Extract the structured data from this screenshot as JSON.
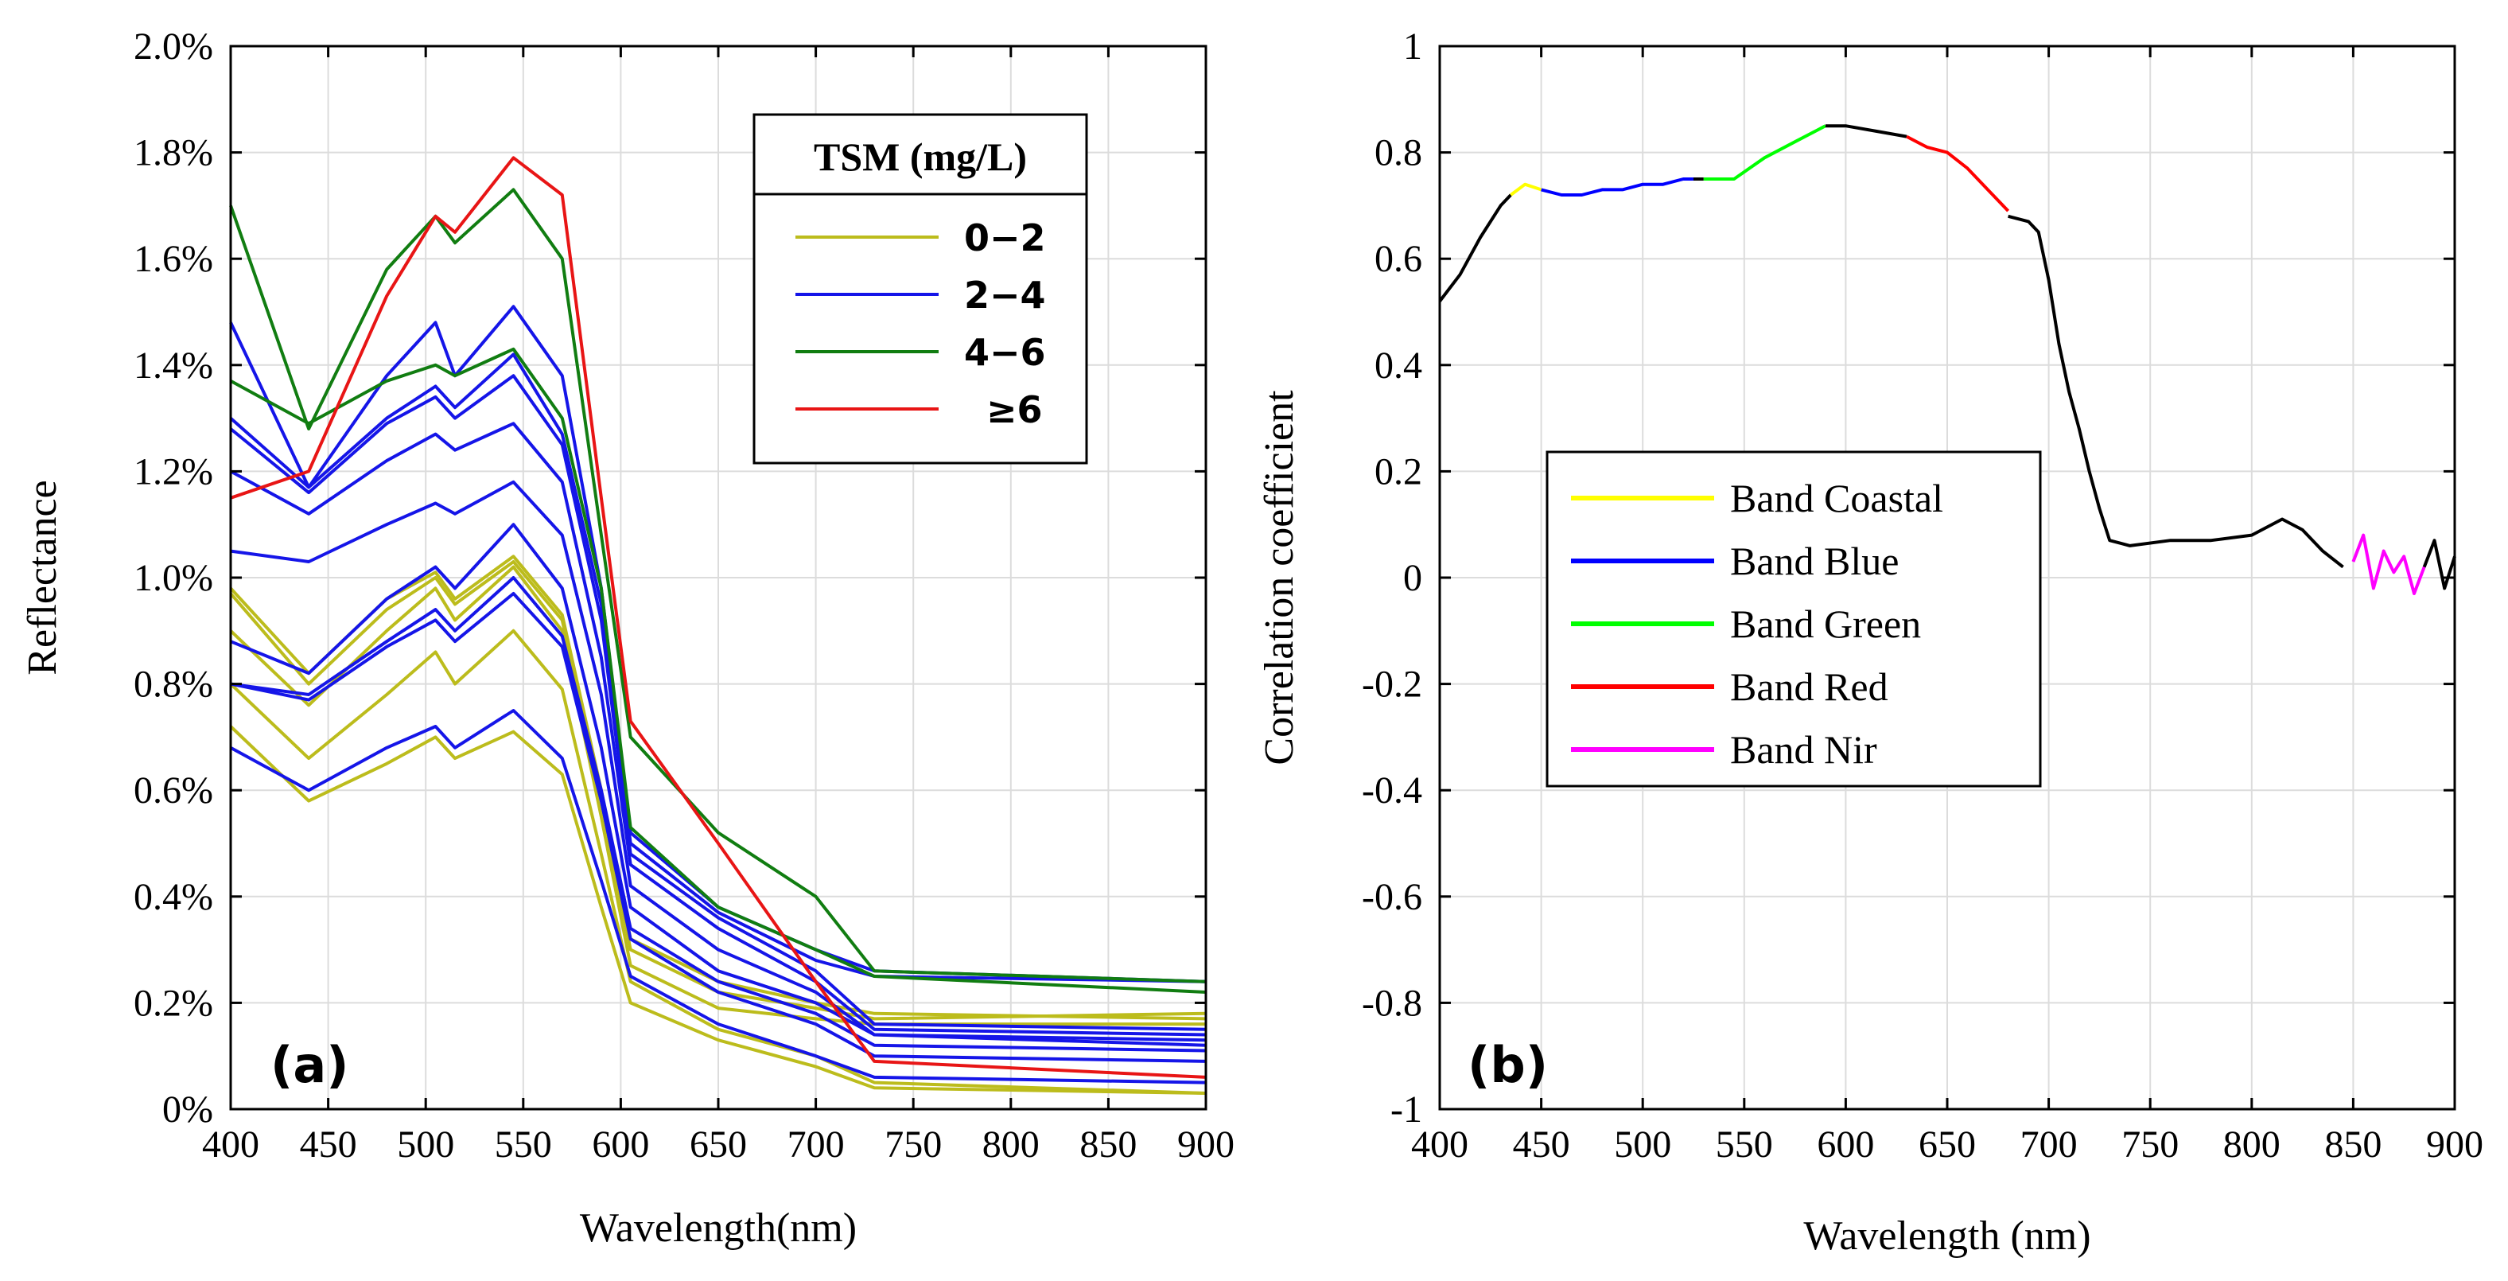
{
  "chart_data": [
    {
      "type": "line",
      "panel_label": "(a)",
      "xlabel": "Wavelength(nm)",
      "ylabel": "Reflectance",
      "xlim": [
        400,
        900
      ],
      "ylim": [
        0,
        2.0
      ],
      "xticks": [
        400,
        450,
        500,
        550,
        600,
        650,
        700,
        750,
        800,
        850,
        900
      ],
      "yticks": [
        0,
        0.2,
        0.4,
        0.6,
        0.8,
        1.0,
        1.2,
        1.4,
        1.6,
        1.8,
        2.0
      ],
      "ytick_labels": [
        "0%",
        "0.2%",
        "0.4%",
        "0.6%",
        "0.8%",
        "1.0%",
        "1.2%",
        "1.4%",
        "1.6%",
        "1.8%",
        "2.0%"
      ],
      "grid": true,
      "legend_position": "top-right",
      "legend": {
        "title": "TSM (mg/L)",
        "entries": [
          {
            "label": "0−2",
            "color": "#bcbc1c"
          },
          {
            "label": "2−4",
            "color": "#1515e8"
          },
          {
            "label": "4−6",
            "color": "#117d11"
          },
          {
            "label": "≥6",
            "color": "#e81515"
          }
        ]
      },
      "x": [
        400,
        440,
        480,
        505,
        515,
        545,
        570,
        590,
        605,
        650,
        700,
        730,
        900
      ],
      "series": [
        {
          "name": "y1",
          "group": "0−2",
          "color": "#bcbc1c",
          "values": [
            0.72,
            0.58,
            0.65,
            0.7,
            0.66,
            0.71,
            0.63,
            0.38,
            0.2,
            0.13,
            0.08,
            0.04,
            0.03
          ]
        },
        {
          "name": "y2",
          "group": "0−2",
          "color": "#bcbc1c",
          "values": [
            0.8,
            0.66,
            0.78,
            0.86,
            0.8,
            0.9,
            0.79,
            0.48,
            0.24,
            0.15,
            0.1,
            0.05,
            0.03
          ]
        },
        {
          "name": "y3",
          "group": "0−2",
          "color": "#bcbc1c",
          "values": [
            0.9,
            0.76,
            0.9,
            0.98,
            0.92,
            1.02,
            0.9,
            0.55,
            0.27,
            0.19,
            0.17,
            0.16,
            0.16
          ]
        },
        {
          "name": "y4",
          "group": "0−2",
          "color": "#bcbc1c",
          "values": [
            0.97,
            0.8,
            0.94,
            1.0,
            0.95,
            1.03,
            0.92,
            0.58,
            0.3,
            0.22,
            0.19,
            0.17,
            0.18
          ]
        },
        {
          "name": "y5",
          "group": "0−2",
          "color": "#bcbc1c",
          "values": [
            0.98,
            0.82,
            0.96,
            1.01,
            0.96,
            1.04,
            0.93,
            0.6,
            0.32,
            0.24,
            0.2,
            0.18,
            0.17
          ]
        },
        {
          "name": "b1",
          "group": "2−4",
          "color": "#1515e8",
          "values": [
            0.68,
            0.6,
            0.68,
            0.72,
            0.68,
            0.75,
            0.66,
            0.43,
            0.25,
            0.16,
            0.1,
            0.06,
            0.05
          ]
        },
        {
          "name": "b2",
          "group": "2−4",
          "color": "#1515e8",
          "values": [
            0.8,
            0.77,
            0.87,
            0.92,
            0.88,
            0.97,
            0.87,
            0.58,
            0.32,
            0.22,
            0.16,
            0.1,
            0.09
          ]
        },
        {
          "name": "b3",
          "group": "2−4",
          "color": "#1515e8",
          "values": [
            0.8,
            0.78,
            0.88,
            0.94,
            0.9,
            1.0,
            0.89,
            0.6,
            0.34,
            0.24,
            0.18,
            0.12,
            0.11
          ]
        },
        {
          "name": "b4",
          "group": "2−4",
          "color": "#1515e8",
          "values": [
            0.88,
            0.82,
            0.96,
            1.02,
            0.98,
            1.1,
            0.98,
            0.68,
            0.38,
            0.26,
            0.2,
            0.14,
            0.12
          ]
        },
        {
          "name": "b5",
          "group": "2−4",
          "color": "#1515e8",
          "values": [
            1.05,
            1.03,
            1.1,
            1.14,
            1.12,
            1.18,
            1.08,
            0.78,
            0.42,
            0.3,
            0.22,
            0.14,
            0.13
          ]
        },
        {
          "name": "b6",
          "group": "2−4",
          "color": "#1515e8",
          "values": [
            1.2,
            1.12,
            1.22,
            1.27,
            1.24,
            1.29,
            1.18,
            0.85,
            0.46,
            0.34,
            0.24,
            0.15,
            0.14
          ]
        },
        {
          "name": "b7",
          "group": "2−4",
          "color": "#1515e8",
          "values": [
            1.28,
            1.16,
            1.29,
            1.34,
            1.3,
            1.38,
            1.25,
            0.92,
            0.48,
            0.36,
            0.26,
            0.16,
            0.15
          ]
        },
        {
          "name": "b8",
          "group": "2−4",
          "color": "#1515e8",
          "values": [
            1.3,
            1.17,
            1.3,
            1.36,
            1.32,
            1.42,
            1.27,
            0.95,
            0.5,
            0.37,
            0.28,
            0.25,
            0.24
          ]
        },
        {
          "name": "b9",
          "group": "2−4",
          "color": "#1515e8",
          "values": [
            1.48,
            1.17,
            1.38,
            1.48,
            1.38,
            1.51,
            1.38,
            0.98,
            0.52,
            0.38,
            0.3,
            0.26,
            0.24
          ]
        },
        {
          "name": "g1",
          "group": "4−6",
          "color": "#117d11",
          "values": [
            1.37,
            1.29,
            1.37,
            1.4,
            1.38,
            1.43,
            1.3,
            0.98,
            0.53,
            0.38,
            0.3,
            0.25,
            0.22
          ]
        },
        {
          "name": "g2",
          "group": "4−6",
          "color": "#117d11",
          "values": [
            1.7,
            1.28,
            1.58,
            1.68,
            1.63,
            1.73,
            1.6,
            1.08,
            0.7,
            0.52,
            0.4,
            0.26,
            0.24
          ]
        },
        {
          "name": "r1",
          "group": "≥6",
          "color": "#e81515",
          "values": [
            1.15,
            1.2,
            1.53,
            1.68,
            1.65,
            1.79,
            1.72,
            1.15,
            0.73,
            0.5,
            0.24,
            0.09,
            0.06
          ]
        }
      ]
    },
    {
      "type": "line",
      "panel_label": "(b)",
      "xlabel": "Wavelength (nm)",
      "ylabel": "Correlation coefficient",
      "xlim": [
        400,
        900
      ],
      "ylim": [
        -1,
        1
      ],
      "xticks": [
        400,
        450,
        500,
        550,
        600,
        650,
        700,
        750,
        800,
        850,
        900
      ],
      "yticks": [
        -1,
        -0.8,
        -0.6,
        -0.4,
        -0.2,
        0,
        0.2,
        0.4,
        0.6,
        0.8,
        1
      ],
      "ytick_labels": [
        "-1",
        "-0.8",
        "-0.6",
        "-0.4",
        "-0.2",
        "0",
        "0.2",
        "0.4",
        "0.6",
        "0.8",
        "1"
      ],
      "grid": true,
      "legend_position": "center-left",
      "legend": {
        "entries": [
          {
            "label": "Band Coastal",
            "color": "#ffff00"
          },
          {
            "label": "Band Blue",
            "color": "#0000ff"
          },
          {
            "label": "Band Green",
            "color": "#00ff00"
          },
          {
            "label": "Band Red",
            "color": "#ff0000"
          },
          {
            "label": "Band Nir",
            "color": "#ff00ff"
          }
        ]
      },
      "series": [
        {
          "name": "pre",
          "color": "#000000",
          "x": [
            400,
            410,
            420,
            430,
            435
          ],
          "values": [
            0.52,
            0.57,
            0.64,
            0.7,
            0.72
          ]
        },
        {
          "name": "Band Coastal",
          "color": "#ffff00",
          "x": [
            435,
            442,
            450
          ],
          "values": [
            0.72,
            0.74,
            0.73
          ]
        },
        {
          "name": "Band Blue",
          "color": "#0000ff",
          "x": [
            450,
            460,
            470,
            480,
            490,
            500,
            510,
            520,
            525
          ],
          "values": [
            0.73,
            0.72,
            0.72,
            0.73,
            0.73,
            0.74,
            0.74,
            0.75,
            0.75
          ]
        },
        {
          "name": "mid1",
          "color": "#000000",
          "x": [
            525,
            530
          ],
          "values": [
            0.75,
            0.75
          ]
        },
        {
          "name": "Band Green",
          "color": "#00ff00",
          "x": [
            530,
            545,
            560,
            575,
            590
          ],
          "values": [
            0.75,
            0.75,
            0.79,
            0.82,
            0.85
          ]
        },
        {
          "name": "mid2",
          "color": "#000000",
          "x": [
            590,
            600,
            615,
            630
          ],
          "values": [
            0.85,
            0.85,
            0.84,
            0.83
          ]
        },
        {
          "name": "Band Red",
          "color": "#ff0000",
          "x": [
            630,
            640,
            650,
            660,
            670,
            680
          ],
          "values": [
            0.83,
            0.81,
            0.8,
            0.77,
            0.73,
            0.69
          ]
        },
        {
          "name": "post",
          "color": "#000000",
          "x": [
            680,
            690,
            695,
            700,
            705,
            710,
            715,
            720,
            725,
            730,
            740,
            760,
            780,
            800,
            815,
            825,
            835,
            845
          ],
          "values": [
            0.68,
            0.67,
            0.65,
            0.56,
            0.44,
            0.35,
            0.28,
            0.2,
            0.13,
            0.07,
            0.06,
            0.07,
            0.07,
            0.08,
            0.11,
            0.09,
            0.05,
            0.02
          ]
        },
        {
          "name": "Band Nir",
          "color": "#ff00ff",
          "x": [
            850,
            855,
            860,
            865,
            870,
            875,
            880,
            885
          ],
          "values": [
            0.03,
            0.08,
            -0.02,
            0.05,
            0.01,
            0.04,
            -0.03,
            0.02
          ]
        },
        {
          "name": "tail",
          "color": "#000000",
          "x": [
            885,
            890,
            895,
            900
          ],
          "values": [
            0.02,
            0.07,
            -0.02,
            0.04
          ]
        }
      ]
    }
  ]
}
